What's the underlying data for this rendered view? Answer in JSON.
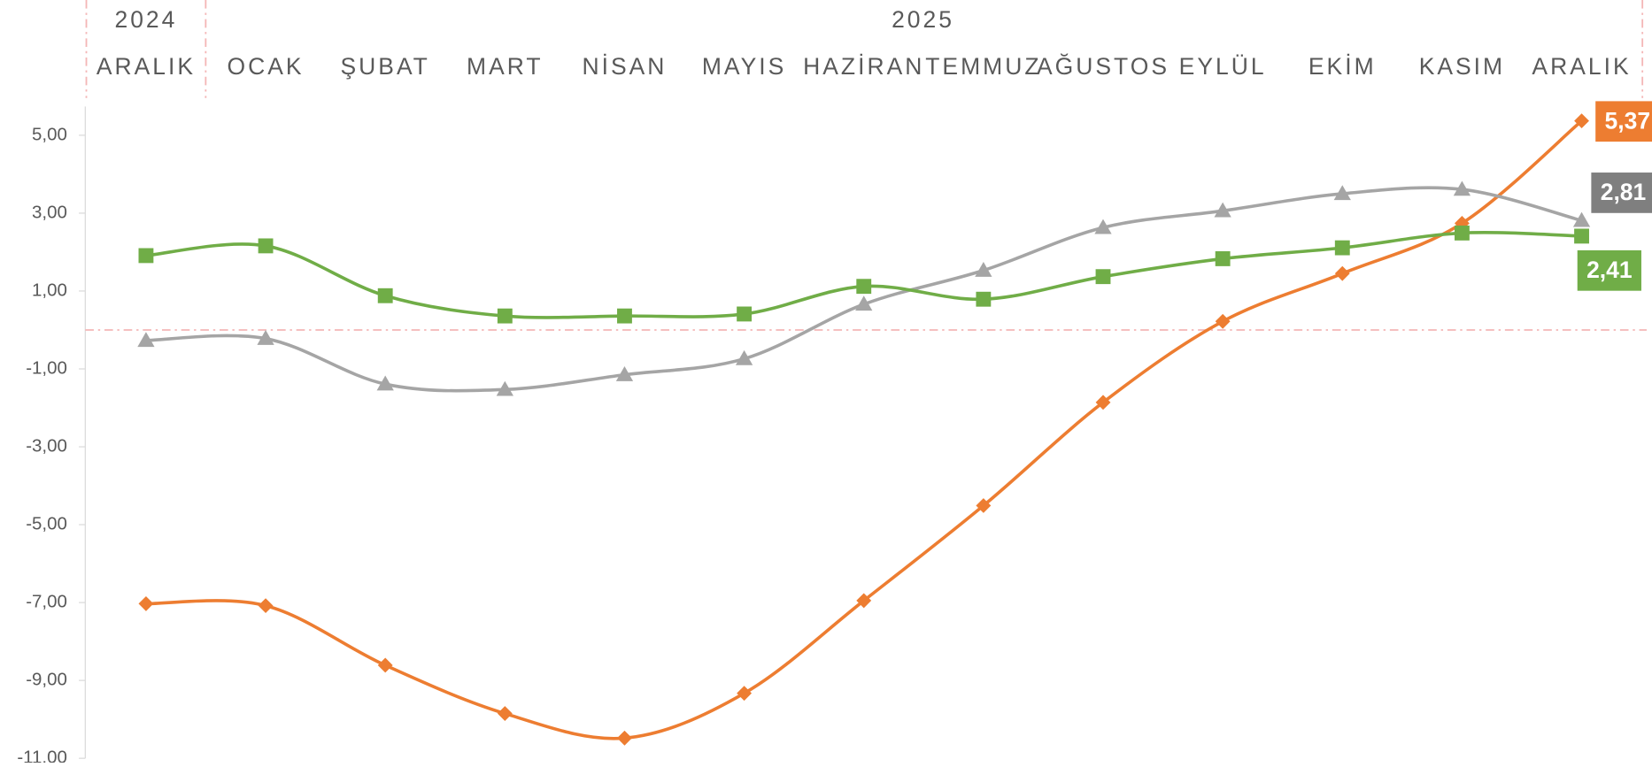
{
  "chart_data": {
    "type": "line",
    "year_labels": [
      "2024",
      "2025"
    ],
    "categories": [
      "ARALIK",
      "OCAK",
      "ŞUBAT",
      "MART",
      "NİSAN",
      "MAYIS",
      "HAZİRAN",
      "TEMMUZ",
      "AĞUSTOS",
      "EYLÜL",
      "EKİM",
      "KASIM",
      "ARALIK"
    ],
    "series": [
      {
        "color": "#ed7d31",
        "marker": "diamond",
        "values": [
          -7.03,
          -7.08,
          -8.61,
          -9.85,
          -10.48,
          -9.33,
          -6.95,
          -4.51,
          -1.86,
          0.22,
          1.45,
          2.74,
          5.37
        ],
        "value_labels": [
          null,
          null,
          null,
          null,
          null,
          null,
          null,
          null,
          null,
          null,
          null,
          null,
          "5,37"
        ]
      },
      {
        "color": "#a5a5a5",
        "label_color": "#7f7f7f",
        "marker": "triangle",
        "values": [
          -0.27,
          -0.22,
          -1.39,
          -1.53,
          -1.15,
          -0.74,
          0.66,
          1.53,
          2.63,
          3.06,
          3.5,
          3.61,
          2.81
        ],
        "value_labels": [
          null,
          null,
          null,
          null,
          null,
          null,
          null,
          null,
          null,
          null,
          null,
          null,
          "2,81"
        ]
      },
      {
        "color": "#70ad47",
        "marker": "square",
        "values": [
          1.91,
          2.16,
          0.88,
          0.36,
          0.36,
          0.41,
          1.12,
          0.79,
          1.37,
          1.83,
          2.11,
          2.49,
          2.41
        ],
        "value_labels": [
          null,
          null,
          null,
          null,
          null,
          null,
          null,
          null,
          null,
          null,
          null,
          null,
          "2,41"
        ]
      }
    ],
    "ylim": [
      -11,
      5
    ],
    "yticks": [
      {
        "value": -11,
        "label": "-11,00"
      },
      {
        "value": -9,
        "label": "-9,00"
      },
      {
        "value": -7,
        "label": "-7,00"
      },
      {
        "value": -5,
        "label": "-5,00"
      },
      {
        "value": -3,
        "label": "-3,00"
      },
      {
        "value": -1,
        "label": "-1,00"
      },
      {
        "value": 1,
        "label": "1,00"
      },
      {
        "value": 3,
        "label": "3,00"
      },
      {
        "value": 5,
        "label": "5,00"
      }
    ],
    "zero_line": true
  }
}
